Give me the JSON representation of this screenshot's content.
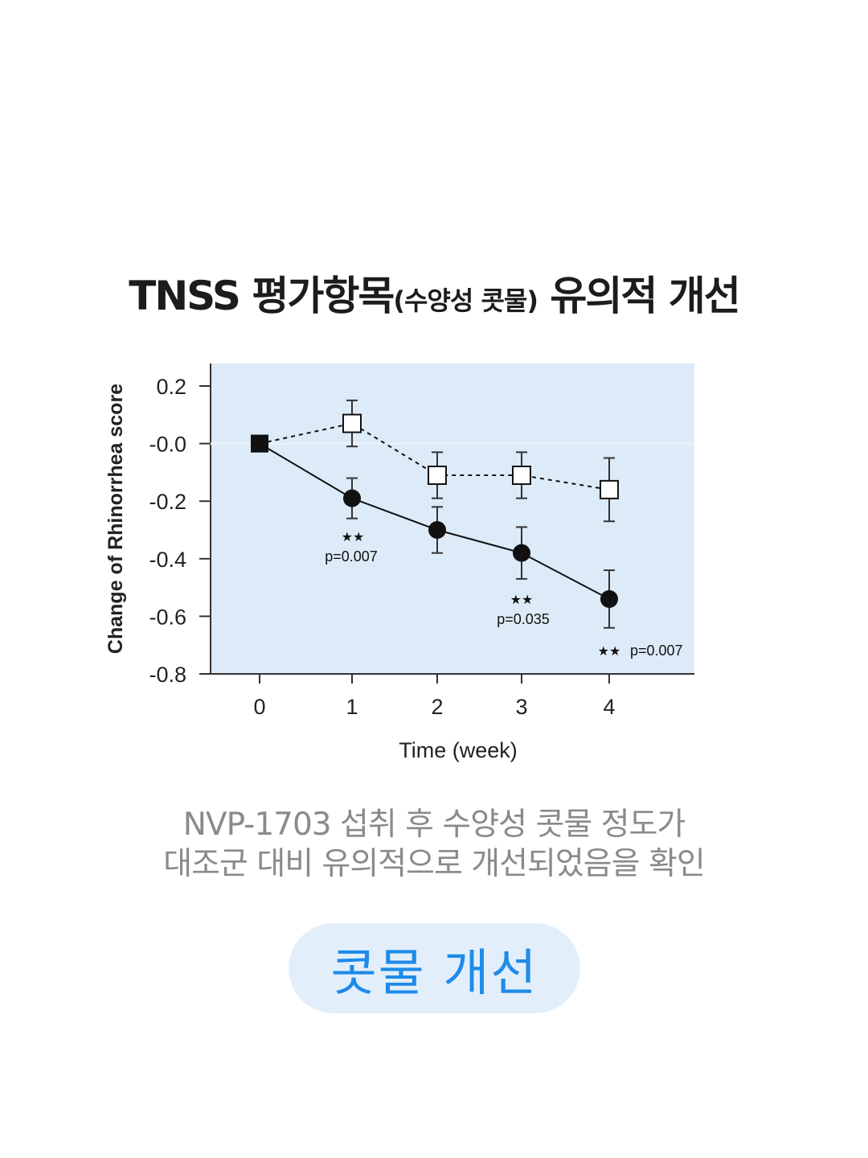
{
  "title": {
    "main": "TNSS 평가항목",
    "paren": "(수양성 콧물)",
    "tail": " 유의적 개선"
  },
  "chart_data": {
    "type": "line",
    "xlabel": "Time (week)",
    "ylabel": "Change of Rhinorrhea score",
    "x_ticks": [
      "0",
      "1",
      "2",
      "3",
      "4"
    ],
    "y_ticks": [
      "0.2",
      "-0.0",
      "-0.2",
      "-0.4",
      "-0.6",
      "-0.8"
    ],
    "ylim": [
      -0.8,
      0.2
    ],
    "xlim": [
      0,
      4
    ],
    "series": [
      {
        "style": "filled-circle-solid",
        "color": "#111111",
        "x": [
          0,
          1,
          2,
          3,
          4
        ],
        "y": [
          0.0,
          -0.19,
          -0.3,
          -0.38,
          -0.54
        ],
        "err": [
          0,
          0.07,
          0.08,
          0.09,
          0.1
        ]
      },
      {
        "style": "open-square-dashed",
        "color": "#111111",
        "x": [
          0,
          1,
          2,
          3,
          4
        ],
        "y": [
          0.0,
          0.07,
          -0.11,
          -0.11,
          -0.16
        ],
        "err": [
          0,
          0.08,
          0.08,
          0.08,
          0.11
        ]
      }
    ],
    "annotations": [
      {
        "x": 1,
        "stars": "★★",
        "text": "p=0.007"
      },
      {
        "x": 3,
        "stars": "★★",
        "text": "p=0.035"
      },
      {
        "x": 4,
        "stars": "★★",
        "text": "p=0.007"
      }
    ],
    "background": "#ddebf8"
  },
  "description": {
    "line1": "NVP-1703 섭취 후 수양성 콧물 정도가",
    "line2": "대조군 대비 유의적으로 개선되었음을 확인"
  },
  "badge": {
    "label": "콧물 개선"
  }
}
